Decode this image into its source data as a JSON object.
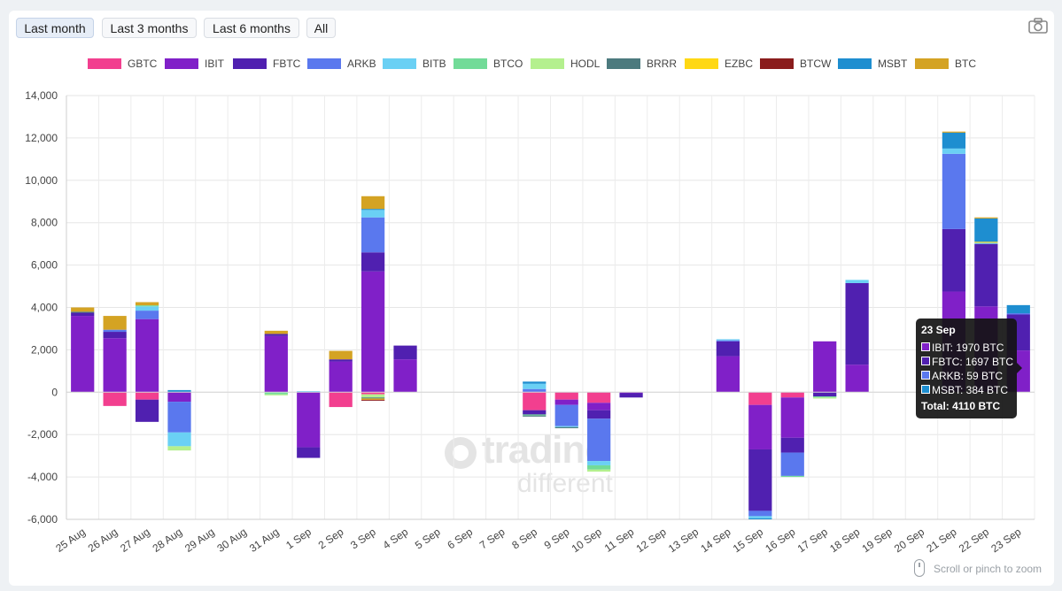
{
  "toolbar": {
    "ranges": [
      {
        "label": "Last month",
        "active": true
      },
      {
        "label": "Last 3 months",
        "active": false
      },
      {
        "label": "Last 6 months",
        "active": false
      },
      {
        "label": "All",
        "active": false
      }
    ],
    "camera_icon": "camera-icon"
  },
  "watermark": {
    "line1": "trading",
    "line2": "different"
  },
  "zoom_hint": "Scroll or pinch to zoom",
  "tooltip": {
    "title": "23 Sep",
    "rows": [
      {
        "label": "IBIT: 1970 BTC",
        "color": "#8020c8"
      },
      {
        "label": "FBTC: 1697 BTC",
        "color": "#5020b0"
      },
      {
        "label": "ARKB: 59 BTC",
        "color": "#5a78ee"
      },
      {
        "label": "MSBT: 384 BTC",
        "color": "#1e8ed0"
      }
    ],
    "total": "Total: 4110 BTC"
  },
  "chart_data": {
    "type": "bar",
    "stacked": true,
    "ylim": [
      -6000,
      14000
    ],
    "yticks": [
      -6000,
      -4000,
      -2000,
      0,
      2000,
      4000,
      6000,
      8000,
      10000,
      12000,
      14000
    ],
    "ytick_labels": [
      "-6,000",
      "-4,000",
      "-2,000",
      "0",
      "2,000",
      "4,000",
      "6,000",
      "8,000",
      "10,000",
      "12,000",
      "14,000"
    ],
    "grid": true,
    "legend_position": "top",
    "categories": [
      "25 Aug",
      "26 Aug",
      "27 Aug",
      "28 Aug",
      "29 Aug",
      "30 Aug",
      "31 Aug",
      "1 Sep",
      "2 Sep",
      "3 Sep",
      "4 Sep",
      "5 Sep",
      "6 Sep",
      "7 Sep",
      "8 Sep",
      "9 Sep",
      "10 Sep",
      "11 Sep",
      "12 Sep",
      "13 Sep",
      "14 Sep",
      "15 Sep",
      "16 Sep",
      "17 Sep",
      "18 Sep",
      "19 Sep",
      "20 Sep",
      "21 Sep",
      "22 Sep",
      "23 Sep"
    ],
    "series": [
      {
        "name": "GBTC",
        "color": "#f23f8f",
        "values": [
          0,
          -650,
          -350,
          0,
          0,
          0,
          0,
          0,
          -700,
          -100,
          0,
          0,
          0,
          0,
          -850,
          -350,
          -500,
          0,
          0,
          0,
          0,
          -600,
          -250,
          0,
          0,
          0,
          0,
          0,
          0,
          0
        ]
      },
      {
        "name": "IBIT",
        "color": "#8020c8",
        "values": [
          3600,
          2550,
          3450,
          -450,
          0,
          0,
          2650,
          -2600,
          1450,
          5700,
          1550,
          0,
          0,
          0,
          0,
          -250,
          -350,
          -50,
          0,
          0,
          1700,
          -2100,
          -1900,
          2400,
          1300,
          0,
          0,
          4750,
          4050,
          1970
        ]
      },
      {
        "name": "FBTC",
        "color": "#5020b0",
        "values": [
          150,
          300,
          -1050,
          0,
          0,
          0,
          100,
          -500,
          100,
          900,
          650,
          0,
          0,
          0,
          -200,
          0,
          -400,
          -200,
          0,
          0,
          700,
          -2900,
          -700,
          -200,
          3850,
          0,
          0,
          2950,
          2950,
          1697
        ]
      },
      {
        "name": "ARKB",
        "color": "#5a78ee",
        "values": [
          0,
          100,
          400,
          -1450,
          0,
          0,
          0,
          0,
          0,
          1650,
          0,
          0,
          0,
          0,
          150,
          -1000,
          -2000,
          0,
          0,
          0,
          50,
          -250,
          -1100,
          0,
          0,
          0,
          0,
          3550,
          0,
          59
        ]
      },
      {
        "name": "BITB",
        "color": "#6ad0f4",
        "values": [
          0,
          0,
          200,
          -650,
          0,
          0,
          0,
          50,
          0,
          350,
          0,
          0,
          0,
          0,
          250,
          -50,
          -200,
          0,
          0,
          0,
          50,
          -100,
          0,
          0,
          150,
          0,
          0,
          250,
          50,
          0
        ]
      },
      {
        "name": "BTCO",
        "color": "#72db98",
        "values": [
          0,
          0,
          50,
          0,
          0,
          0,
          -100,
          0,
          0,
          0,
          0,
          0,
          0,
          0,
          -50,
          0,
          -200,
          0,
          0,
          0,
          0,
          0,
          -50,
          -50,
          0,
          0,
          0,
          0,
          0,
          0
        ]
      },
      {
        "name": "HODL",
        "color": "#b4f08e",
        "values": [
          0,
          0,
          0,
          -200,
          0,
          0,
          -50,
          0,
          0,
          -150,
          0,
          0,
          0,
          0,
          0,
          0,
          -100,
          0,
          0,
          0,
          0,
          0,
          0,
          -50,
          0,
          0,
          0,
          0,
          0,
          0
        ]
      },
      {
        "name": "BRRR",
        "color": "#4c7a7e",
        "values": [
          50,
          0,
          0,
          0,
          0,
          0,
          0,
          0,
          0,
          -50,
          0,
          0,
          0,
          0,
          -50,
          -50,
          0,
          0,
          0,
          0,
          0,
          0,
          0,
          0,
          0,
          0,
          0,
          0,
          0,
          0
        ]
      },
      {
        "name": "EZBC",
        "color": "#ffd814",
        "values": [
          0,
          0,
          0,
          0,
          0,
          0,
          0,
          0,
          0,
          -50,
          0,
          0,
          0,
          0,
          0,
          0,
          0,
          0,
          0,
          0,
          0,
          0,
          0,
          0,
          0,
          0,
          0,
          0,
          50,
          0
        ]
      },
      {
        "name": "BTCW",
        "color": "#8a1c1c",
        "values": [
          0,
          0,
          0,
          0,
          0,
          0,
          0,
          0,
          0,
          -50,
          0,
          0,
          0,
          0,
          0,
          0,
          0,
          0,
          0,
          0,
          0,
          0,
          0,
          0,
          0,
          0,
          0,
          0,
          0,
          0
        ]
      },
      {
        "name": "MSBT",
        "color": "#1e8ed0",
        "values": [
          0,
          0,
          0,
          100,
          0,
          0,
          0,
          0,
          0,
          50,
          0,
          0,
          0,
          0,
          100,
          0,
          0,
          0,
          0,
          0,
          0,
          -50,
          0,
          0,
          0,
          0,
          0,
          750,
          1100,
          384
        ]
      },
      {
        "name": "BTC",
        "color": "#d4a323",
        "values": [
          200,
          650,
          150,
          0,
          0,
          0,
          150,
          0,
          400,
          600,
          0,
          0,
          0,
          0,
          0,
          0,
          0,
          0,
          0,
          0,
          0,
          0,
          0,
          0,
          0,
          0,
          0,
          50,
          50,
          0
        ]
      }
    ]
  }
}
